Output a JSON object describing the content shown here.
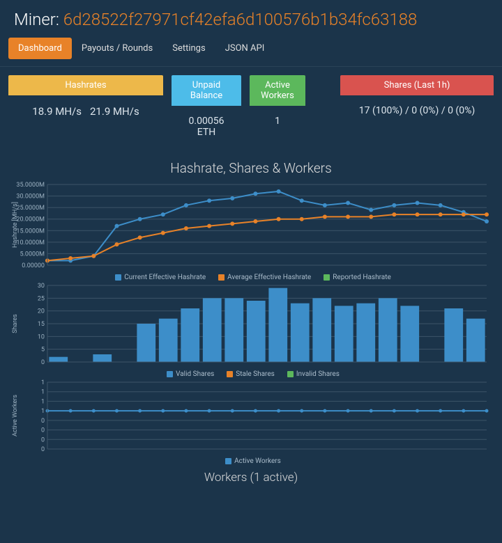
{
  "header": {
    "label": "Miner:",
    "address": "6d28522f27971cf42efa6d100576b1b34fc63188"
  },
  "tabs": {
    "items": [
      "Dashboard",
      "Payouts / Rounds",
      "Settings",
      "JSON API"
    ],
    "active_index": 0
  },
  "cards": {
    "hashrates": {
      "title": "Hashrates",
      "v1": "18.9 MH/s",
      "v2": "21.9 MH/s",
      "head_color": "#edb84a"
    },
    "unpaid": {
      "title": "Unpaid Balance",
      "value": "0.00056 ETH",
      "head_color": "#4dbce9"
    },
    "workers": {
      "title": "Active Workers",
      "value": "1",
      "head_color": "#5cb85c"
    },
    "shares": {
      "title": "Shares (Last 1h)",
      "value": "17 (100%) / 0 (0%) / 0 (0%)",
      "head_color": "#d9534f"
    }
  },
  "chart_section_title": "Hashrate, Shares & Workers",
  "hashrate_chart": {
    "type": "line",
    "ylabel": "Hashrate [MH/s]",
    "ylim": [
      0,
      35
    ],
    "ytick_step": 5,
    "ytick_labels": [
      "0.00000",
      "5.0000M",
      "10.0000M",
      "15.0000M",
      "20.0000M",
      "25.0000M",
      "30.0000M",
      "35.0000M"
    ],
    "background": "#1b344a",
    "grid_color": "#3d5568",
    "num_points": 20,
    "series": [
      {
        "name": "Current Effective Hashrate",
        "color": "#3d8ec9",
        "values": [
          2,
          2,
          4,
          17,
          20,
          22,
          26,
          28,
          29,
          31,
          32,
          28,
          26,
          27,
          24,
          26,
          27,
          26,
          23,
          19
        ],
        "linewidth": 2,
        "marker": "circle",
        "markersize": 3
      },
      {
        "name": "Average Effective Hashrate",
        "color": "#e88228",
        "values": [
          2,
          3,
          4,
          9,
          12,
          14,
          16,
          17,
          18,
          19,
          20,
          20,
          21,
          21,
          21,
          22,
          22,
          22,
          22,
          22
        ],
        "linewidth": 2,
        "marker": "circle",
        "markersize": 3
      },
      {
        "name": "Reported Hashrate",
        "color": "#5cb85c",
        "values": [],
        "linewidth": 2
      }
    ]
  },
  "shares_chart": {
    "type": "bar",
    "ylabel": "Shares",
    "ylim": [
      0,
      30
    ],
    "ytick_step": 5,
    "ytick_labels": [
      "0",
      "5",
      "10",
      "15",
      "20",
      "25",
      "30"
    ],
    "background": "#1b344a",
    "grid_color": "#3d5568",
    "bar_width": 0.85,
    "num_points": 20,
    "series": [
      {
        "name": "Valid Shares",
        "color": "#3d8ec9",
        "values": [
          2,
          0,
          3,
          0,
          15,
          17,
          21,
          25,
          25,
          24,
          29,
          23,
          25,
          22,
          23,
          25,
          22,
          0,
          21,
          17
        ]
      },
      {
        "name": "Stale Shares",
        "color": "#e88228",
        "values": []
      },
      {
        "name": "Invalid Shares",
        "color": "#5cb85c",
        "values": []
      }
    ]
  },
  "workers_chart": {
    "type": "line",
    "ylabel": "Active Workers",
    "ylim": [
      0,
      1
    ],
    "ytick_labels": [
      "0",
      "0",
      "0",
      "0",
      "1",
      "1",
      "1",
      "1"
    ],
    "background": "#1b344a",
    "grid_color": "#3d5568",
    "num_points": 20,
    "series": [
      {
        "name": "Active Workers",
        "color": "#3d8ec9",
        "values": [
          1,
          1,
          1,
          1,
          1,
          1,
          1,
          1,
          1,
          1,
          1,
          1,
          1,
          1,
          1,
          1,
          1,
          1,
          1,
          1
        ],
        "linewidth": 2,
        "marker": "circle",
        "markersize": 3
      }
    ]
  },
  "workers_table_title": "Workers (1 active)"
}
